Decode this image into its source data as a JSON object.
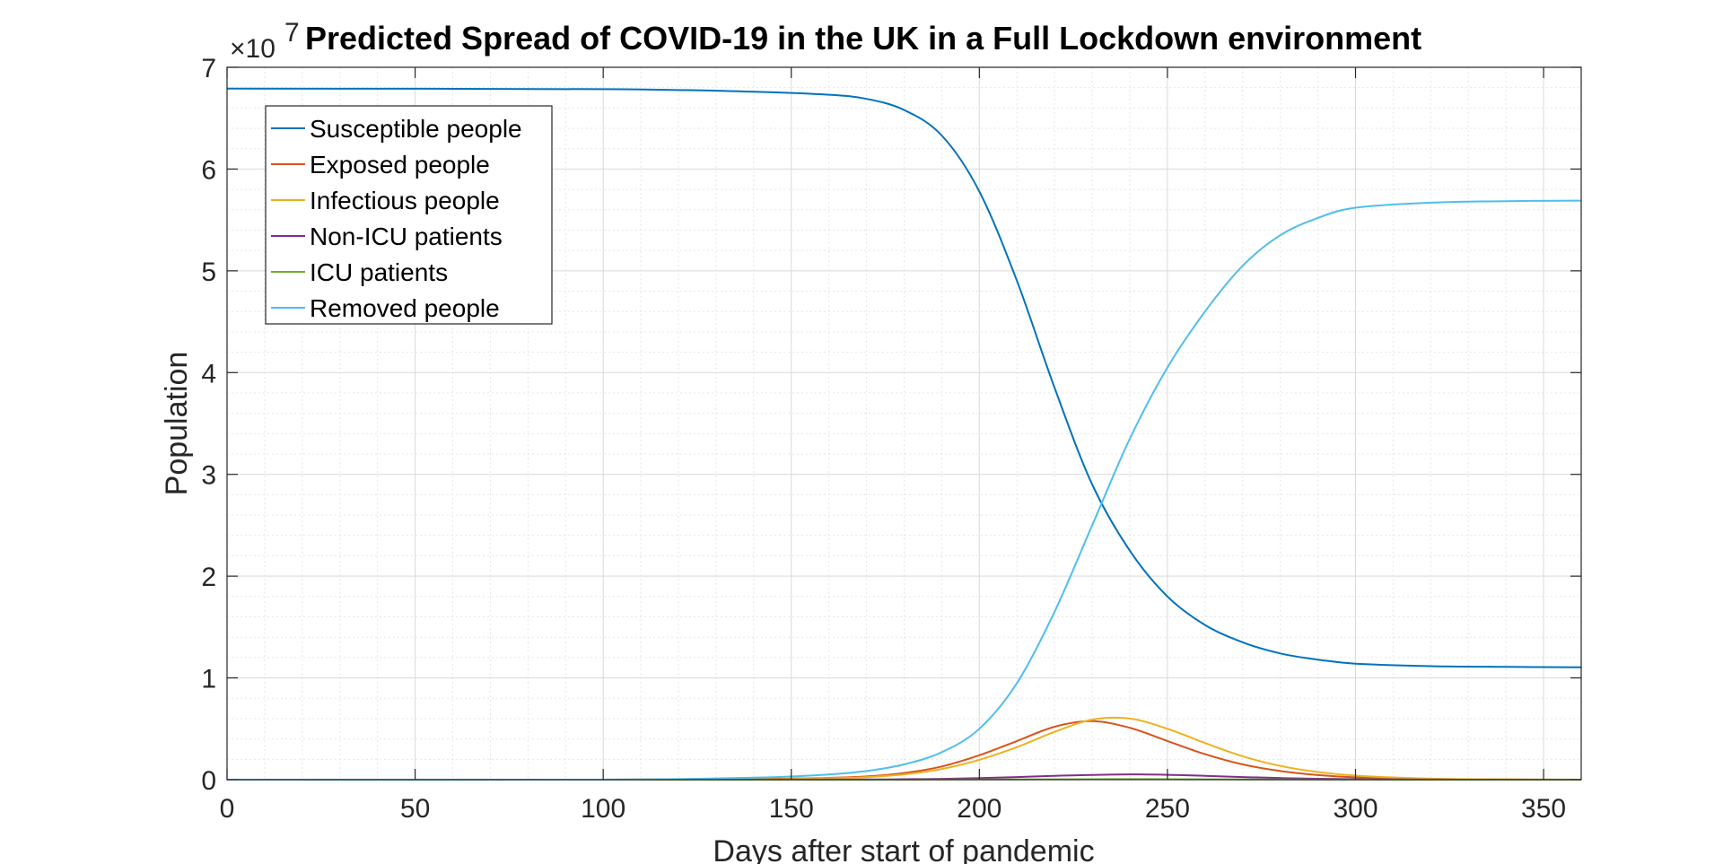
{
  "chart_data": {
    "type": "line",
    "title": "Predicted Spread of COVID-19 in the UK in a Full Lockdown environment",
    "xlabel": "Days after start of pandemic",
    "ylabel": "Population",
    "y_exponent_base": "×10",
    "y_exponent_power": "7",
    "xlim": [
      0,
      360
    ],
    "ylim": [
      0,
      70000000
    ],
    "xticks": [
      0,
      50,
      100,
      150,
      200,
      250,
      300,
      350
    ],
    "yticks": [
      0,
      1,
      2,
      3,
      4,
      5,
      6,
      7
    ],
    "grid": true,
    "minor_grid": true,
    "legend_position": "top-left",
    "x": [
      0,
      100,
      140,
      160,
      170,
      180,
      190,
      200,
      210,
      220,
      230,
      240,
      250,
      260,
      270,
      280,
      290,
      300,
      320,
      340,
      360
    ],
    "series": [
      {
        "name": "Susceptible people",
        "color": "#0072BD",
        "values": [
          67900000,
          67850000,
          67600000,
          67300000,
          66900000,
          65800000,
          63300000,
          57800000,
          49000000,
          38500000,
          29000000,
          22500000,
          18000000,
          15200000,
          13500000,
          12400000,
          11800000,
          11400000,
          11150000,
          11080000,
          11050000
        ]
      },
      {
        "name": "Exposed people",
        "color": "#D95319",
        "values": [
          0,
          0,
          60000,
          180000,
          320000,
          650000,
          1300000,
          2400000,
          3800000,
          5200000,
          5750000,
          5100000,
          3800000,
          2500000,
          1500000,
          850000,
          450000,
          230000,
          60000,
          15000,
          0
        ]
      },
      {
        "name": "Infectious people",
        "color": "#EDB120",
        "values": [
          0,
          0,
          40000,
          140000,
          250000,
          520000,
          1050000,
          1950000,
          3200000,
          4700000,
          5900000,
          6000000,
          5000000,
          3600000,
          2300000,
          1350000,
          750000,
          400000,
          100000,
          25000,
          0
        ]
      },
      {
        "name": "Non-ICU patients",
        "color": "#7E2F8E",
        "values": [
          0,
          0,
          5000,
          10000,
          20000,
          40000,
          80000,
          150000,
          260000,
          380000,
          470000,
          520000,
          480000,
          380000,
          260000,
          160000,
          90000,
          50000,
          10000,
          3000,
          0
        ]
      },
      {
        "name": "ICU patients",
        "color": "#77AC30",
        "values": [
          0,
          0,
          500,
          1000,
          2000,
          4000,
          8000,
          15000,
          25000,
          38000,
          48000,
          52000,
          48000,
          38000,
          26000,
          16000,
          9000,
          5000,
          1000,
          300,
          0
        ]
      },
      {
        "name": "Removed people",
        "color": "#4DBEEE",
        "values": [
          0,
          0,
          200000,
          500000,
          850000,
          1500000,
          2700000,
          5000000,
          9500000,
          16500000,
          25000000,
          33500000,
          40500000,
          46000000,
          50500000,
          53500000,
          55200000,
          56200000,
          56700000,
          56850000,
          56900000
        ]
      }
    ]
  }
}
